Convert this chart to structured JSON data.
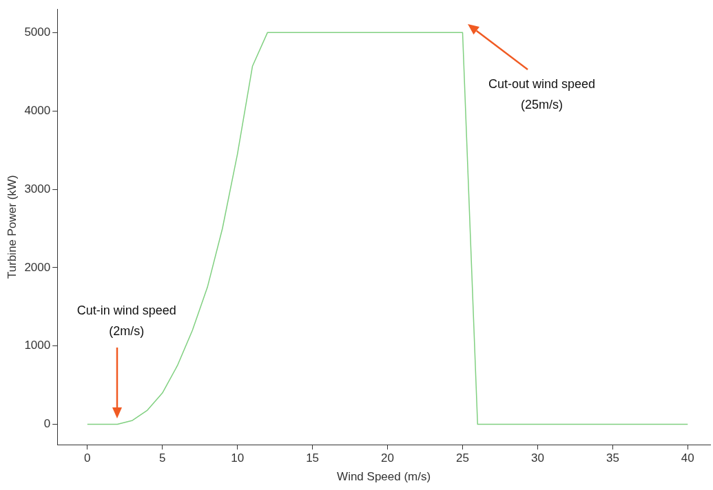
{
  "chart_data": {
    "type": "line",
    "xlabel": "Wind Speed (m/s)",
    "ylabel": "Turbine Power (kW)",
    "x": [
      0,
      1,
      2,
      3,
      4,
      5,
      6,
      7,
      8,
      9,
      10,
      11,
      12,
      13,
      14,
      15,
      16,
      17,
      18,
      19,
      20,
      21,
      22,
      23,
      24,
      25,
      26,
      27,
      28,
      29,
      30,
      31,
      32,
      33,
      34,
      35,
      36,
      37,
      38,
      39,
      40
    ],
    "series": [
      {
        "color": "#80d080",
        "values": [
          0,
          0,
          0,
          50,
          180,
          400,
          750,
          1200,
          1750,
          2500,
          3450,
          4570,
          5000,
          5000,
          5000,
          5000,
          5000,
          5000,
          5000,
          5000,
          5000,
          5000,
          5000,
          5000,
          5000,
          5000,
          0,
          0,
          0,
          0,
          0,
          0,
          0,
          0,
          0,
          0,
          0,
          0,
          0,
          0,
          0
        ]
      }
    ],
    "xlim": [
      -2,
      41.5
    ],
    "xticks": [
      0,
      5,
      10,
      15,
      20,
      25,
      30,
      35,
      40
    ],
    "ylim": [
      -260,
      5300
    ],
    "yticks": [
      0,
      1000,
      2000,
      3000,
      4000,
      5000
    ],
    "grid": false,
    "legend": false,
    "marker": "none",
    "line_style": "solid",
    "annotations": [
      "Cut-in wind speed\n(2m/s)",
      "Cut-out wind speed\n(25m/s)"
    ]
  }
}
